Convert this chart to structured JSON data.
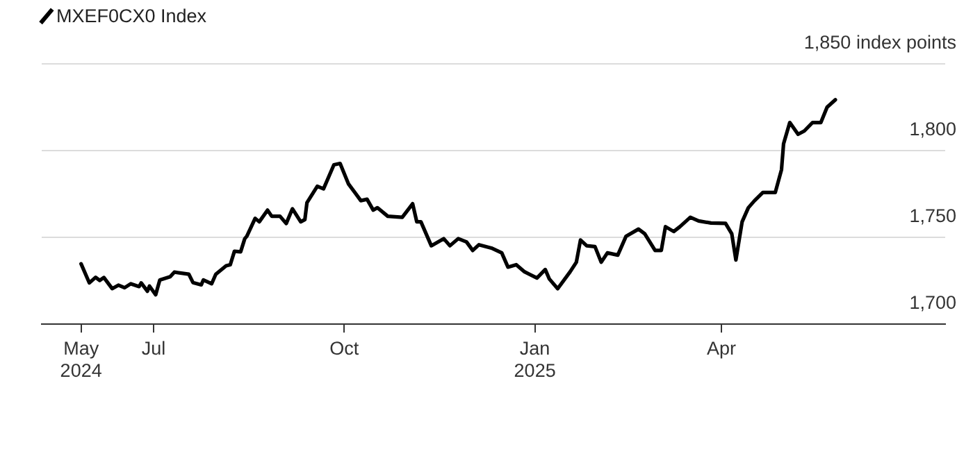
{
  "chart_data": {
    "type": "line",
    "legend": "top left",
    "grid": "y",
    "marker": "none",
    "line_style": "solid",
    "xlim": [
      "2024-05-08",
      "2025-07-18"
    ],
    "xticks": [
      {
        "value": "2024-05-27",
        "label": "May 2024"
      },
      {
        "value": "2024-07-01",
        "label": "Jul"
      },
      {
        "value": "2024-10-01",
        "label": "Oct"
      },
      {
        "value": "2025-01-01",
        "label": "Jan 2025"
      },
      {
        "value": "2025-04-01",
        "label": "Apr"
      }
    ],
    "ylim": [
      1700,
      1850
    ],
    "yticks": [
      {
        "value": 1700,
        "label": "1,700"
      },
      {
        "value": 1750,
        "label": "1,750"
      },
      {
        "value": 1800,
        "label": "1,800"
      },
      {
        "value": 1850,
        "label": "1,850 index points"
      }
    ],
    "series": [
      {
        "name": "MXEF0CX0 Index",
        "color": "#000000",
        "x": [
          "2024-05-27",
          "2024-05-31",
          "2024-06-03",
          "2024-06-05",
          "2024-06-07",
          "2024-06-11",
          "2024-06-14",
          "2024-06-17",
          "2024-06-20",
          "2024-06-24",
          "2024-06-25",
          "2024-06-28",
          "2024-06-29",
          "2024-07-02",
          "2024-07-04",
          "2024-07-09",
          "2024-07-11",
          "2024-07-18",
          "2024-07-20",
          "2024-07-24",
          "2024-07-25",
          "2024-07-29",
          "2024-07-31",
          "2024-08-05",
          "2024-08-07",
          "2024-08-09",
          "2024-08-12",
          "2024-08-14",
          "2024-08-15",
          "2024-08-19",
          "2024-08-21",
          "2024-08-25",
          "2024-08-27",
          "2024-08-31",
          "2024-09-03",
          "2024-09-06",
          "2024-09-10",
          "2024-09-12",
          "2024-09-13",
          "2024-09-18",
          "2024-09-21",
          "2024-09-26",
          "2024-09-29",
          "2024-10-03",
          "2024-10-09",
          "2024-10-12",
          "2024-10-15",
          "2024-10-17",
          "2024-10-22",
          "2024-10-29",
          "2024-11-03",
          "2024-11-05",
          "2024-11-07",
          "2024-11-12",
          "2024-11-18",
          "2024-11-21",
          "2024-11-25",
          "2024-11-29",
          "2024-12-02",
          "2024-12-05",
          "2024-12-11",
          "2024-12-16",
          "2024-12-19",
          "2024-12-23",
          "2024-12-27",
          "2025-01-02",
          "2025-01-06",
          "2025-01-08",
          "2025-01-12",
          "2025-01-18",
          "2025-01-21",
          "2025-01-23",
          "2025-01-26",
          "2025-01-30",
          "2025-02-02",
          "2025-02-05",
          "2025-02-10",
          "2025-02-14",
          "2025-02-20",
          "2025-02-23",
          "2025-02-28",
          "2025-03-03",
          "2025-03-05",
          "2025-03-09",
          "2025-03-12",
          "2025-03-17",
          "2025-03-21",
          "2025-03-27",
          "2025-04-03",
          "2025-04-06",
          "2025-04-08",
          "2025-04-11",
          "2025-04-14",
          "2025-04-17",
          "2025-04-21",
          "2025-04-27",
          "2025-04-30",
          "2025-05-01",
          "2025-05-04",
          "2025-05-08",
          "2025-05-11",
          "2025-05-15",
          "2025-05-19",
          "2025-05-22",
          "2025-05-26"
        ],
        "values": [
          1734.8,
          1723.8,
          1727,
          1725.2,
          1726.9,
          1720.5,
          1722.5,
          1721,
          1723.3,
          1721.7,
          1723.8,
          1719,
          1722,
          1717,
          1725.5,
          1727.4,
          1730,
          1728.8,
          1724,
          1722.7,
          1725.5,
          1723.3,
          1728.8,
          1733.7,
          1734.3,
          1742,
          1741.7,
          1749.3,
          1750.7,
          1761,
          1759,
          1765.7,
          1762.2,
          1762.2,
          1758,
          1766.5,
          1759,
          1760.3,
          1770,
          1779.5,
          1778,
          1791.8,
          1792.6,
          1780.9,
          1771.2,
          1772,
          1765.7,
          1767.1,
          1762.2,
          1761.6,
          1769.4,
          1759,
          1759,
          1745.2,
          1749.3,
          1745.2,
          1749.3,
          1747.4,
          1742.5,
          1745.8,
          1743.9,
          1741.1,
          1732.9,
          1734.3,
          1730.2,
          1726.6,
          1731.5,
          1726,
          1720.5,
          1730.2,
          1735.7,
          1748.5,
          1745.2,
          1744.7,
          1735.7,
          1741.1,
          1739.8,
          1750.7,
          1754.8,
          1752.1,
          1742.5,
          1742.5,
          1756.2,
          1753.4,
          1756.2,
          1761.6,
          1759.5,
          1758.3,
          1758.1,
          1752.1,
          1737,
          1759,
          1767.1,
          1771.2,
          1775.9,
          1775.9,
          1789,
          1803.9,
          1816.2,
          1809.4,
          1811.3,
          1816.2,
          1816.2,
          1825,
          1829.3
        ]
      }
    ]
  }
}
